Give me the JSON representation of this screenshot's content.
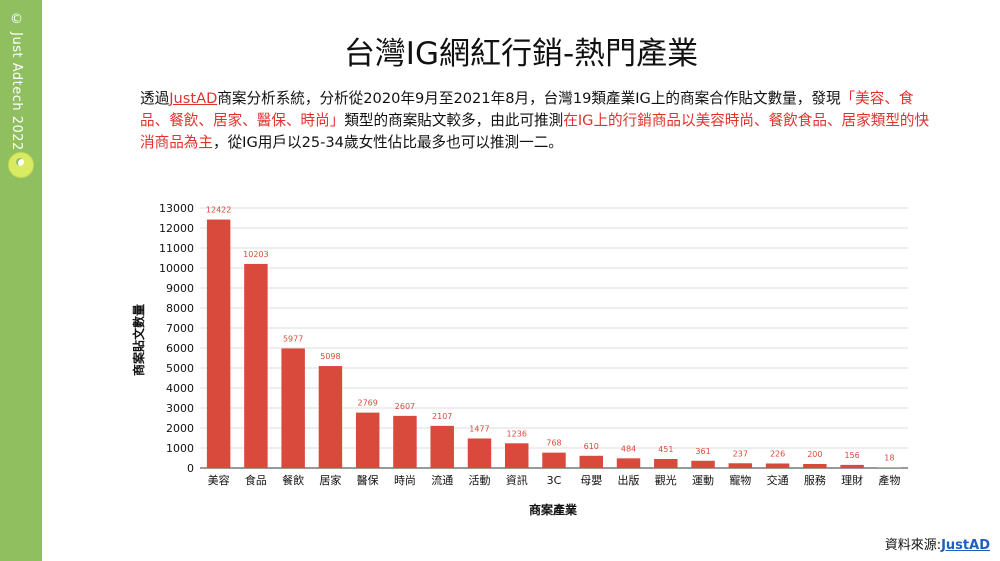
{
  "sidebar": {
    "copyright": "© Just Adtech 2022"
  },
  "title": "台灣IG網紅行銷-熱門產業",
  "description": {
    "p1": "透過",
    "link": "JustAD",
    "p2": "商案分析系統，分析從2020年9月至2021年8月，台灣19類產業IG上的商案合作貼文數量，發現",
    "red1": "「美容、食品、餐飲、居家、醫保、時尚」",
    "p3": "類型的商案貼文較多，由此可推測",
    "red2": "在IG上的行銷商品以美容時尚、餐飲食品、居家類型的快消商品為主",
    "p4": "，從IG用戶以25-34歲女性佔比最多也可以推測一二。"
  },
  "source": {
    "label": "資料來源:",
    "link": "JustAD"
  },
  "colors": {
    "bar": "#d94a3d",
    "label": "#d94a3d",
    "grid": "#dddddd",
    "sidebar": "#8fbf5e"
  },
  "chart_data": {
    "type": "bar",
    "categories": [
      "美容",
      "食品",
      "餐飲",
      "居家",
      "醫保",
      "時尚",
      "流通",
      "活動",
      "資訊",
      "3C",
      "母嬰",
      "出版",
      "觀光",
      "運動",
      "寵物",
      "交通",
      "服務",
      "理財",
      "產物"
    ],
    "values": [
      12422,
      10203,
      5977,
      5098,
      2769,
      2607,
      2107,
      1477,
      1236,
      768,
      610,
      484,
      451,
      361,
      237,
      226,
      200,
      156,
      18
    ],
    "xlabel": "商案產業",
    "ylabel": "商案貼文數量",
    "ylim": [
      0,
      13000
    ],
    "yticks": [
      0,
      1000,
      2000,
      3000,
      4000,
      5000,
      6000,
      7000,
      8000,
      9000,
      10000,
      11000,
      12000,
      13000
    ],
    "grid": true,
    "data_labels": true
  }
}
